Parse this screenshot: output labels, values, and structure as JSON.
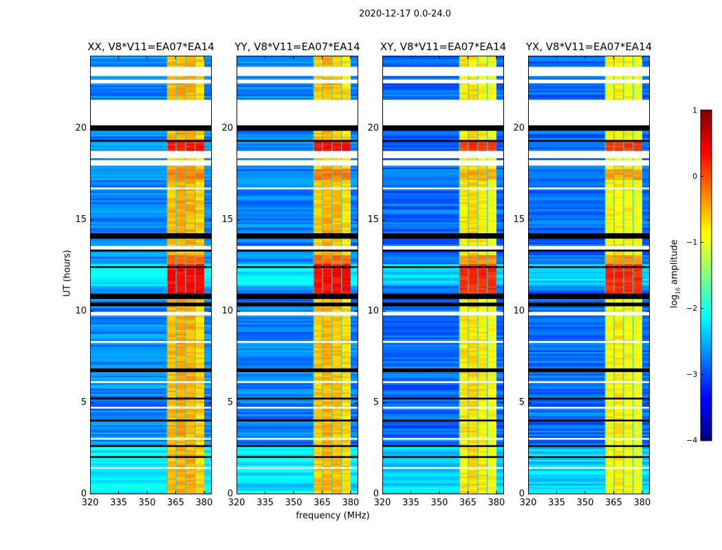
{
  "figure_title": "2020-12-17 0.0-24.0",
  "xlabel": "frequency (MHz)",
  "ylabel": "UT (hours)",
  "colorbar": {
    "label_main": "log",
    "label_sub": "10",
    "label_rest": " amplitude",
    "tick_values": [
      1,
      0,
      -1,
      -2,
      -3,
      -4
    ],
    "tick_labels": [
      "1",
      "0",
      "−1",
      "−2",
      "−3",
      "−4"
    ],
    "range": [
      -4,
      1
    ],
    "colormap": "jet"
  },
  "shared": {
    "xlim": [
      320,
      384
    ],
    "ylim": [
      0,
      24
    ],
    "xticks": [
      320,
      335,
      350,
      365,
      380
    ],
    "xtick_labels": [
      "320",
      "335",
      "350",
      "365",
      "380"
    ],
    "yticks": [
      0,
      5,
      10,
      15,
      20
    ],
    "ytick_labels": [
      "0",
      "5",
      "10",
      "15",
      "20"
    ],
    "rfi_subband_edges_mhz": [
      360.5,
      365.2,
      370.2,
      375.2,
      380
    ],
    "flagged_hours": [
      [
        22.9,
        23.45
      ],
      [
        22.55,
        22.75
      ],
      [
        21.45,
        21.6
      ],
      [
        20.2,
        21.4
      ],
      [
        18.4,
        18.8
      ],
      [
        17.95,
        18.3
      ],
      [
        16.7,
        16.8
      ],
      [
        13.4,
        13.6
      ],
      [
        12.05,
        12.1
      ],
      [
        9.8,
        9.95
      ],
      [
        8.3,
        8.4
      ],
      [
        6.1,
        6.2
      ],
      [
        4.7,
        4.8
      ],
      [
        3.0,
        3.15
      ],
      [
        1.4,
        1.5
      ]
    ],
    "dark_hours": [
      [
        23.3,
        23.4
      ],
      [
        19.9,
        20.2
      ],
      [
        19.3,
        19.4
      ],
      [
        18.2,
        18.3
      ],
      [
        14.0,
        14.3
      ],
      [
        13.25,
        13.35
      ],
      [
        12.4,
        12.5
      ],
      [
        10.7,
        11.0
      ],
      [
        10.3,
        10.5
      ],
      [
        6.7,
        6.85
      ],
      [
        5.2,
        5.3
      ],
      [
        4.0,
        4.1
      ],
      [
        2.6,
        2.7
      ],
      [
        2.0,
        2.1
      ]
    ],
    "high_hours": [
      {
        "range": [
          11.0,
          12.6
        ],
        "level": 0.35
      },
      {
        "range": [
          18.6,
          19.3
        ],
        "level": 0.3
      },
      {
        "range": [
          17.2,
          17.8
        ],
        "level": -0.25
      },
      {
        "range": [
          12.6,
          13.1
        ],
        "level": -0.15
      }
    ],
    "green_background_hours": [
      [
        0.0,
        2.6
      ],
      [
        11.4,
        12.6
      ]
    ]
  },
  "chart_data": [
    {
      "type": "heatmap",
      "title": "XX, V8*V11=EA07*EA14",
      "background_level": -2.7,
      "band_levels": [
        -0.55,
        -0.45,
        -0.5,
        -0.65
      ]
    },
    {
      "type": "heatmap",
      "title": "YY, V8*V11=EA07*EA14",
      "background_level": -2.75,
      "band_levels": [
        -0.6,
        -0.5,
        -0.55,
        -0.7
      ]
    },
    {
      "type": "heatmap",
      "title": "XY, V8*V11=EA07*EA14",
      "background_level": -2.85,
      "band_levels": [
        -0.75,
        -0.7,
        -0.8,
        -0.9
      ]
    },
    {
      "type": "heatmap",
      "title": "YX, V8*V11=EA07*EA14",
      "background_level": -2.85,
      "band_levels": [
        -0.85,
        -0.8,
        -0.85,
        -0.95
      ]
    }
  ]
}
